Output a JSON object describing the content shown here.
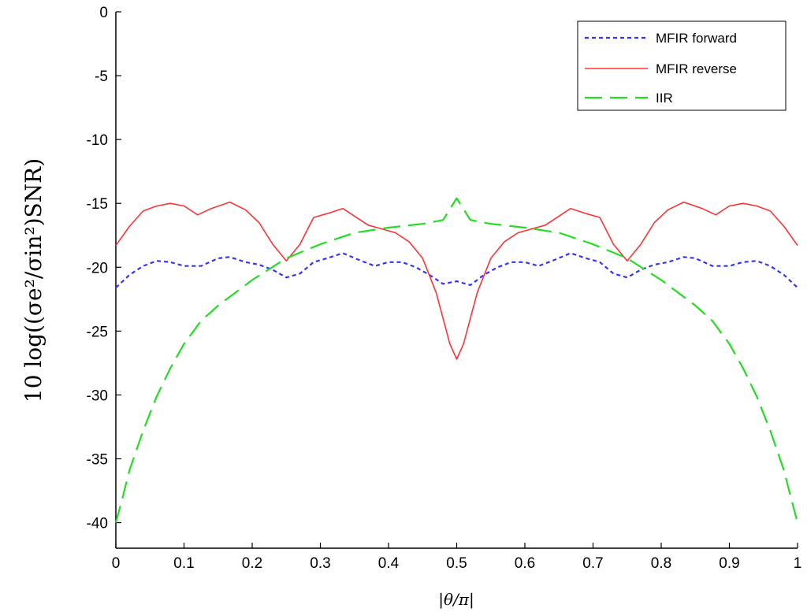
{
  "chart_data": {
    "type": "line",
    "title": "",
    "xlabel": "|θ/π|",
    "ylabel": "10 log((σe²/σin²)SNR)",
    "xlim": [
      0,
      1
    ],
    "ylim": [
      -42,
      0
    ],
    "xticks": [
      0,
      0.1,
      0.2,
      0.3,
      0.4,
      0.5,
      0.6,
      0.7,
      0.8,
      0.9,
      1
    ],
    "xtick_labels": [
      "0",
      "0.1",
      "0.2",
      "0.3",
      "0.4",
      "0.5",
      "0.6",
      "0.7",
      "0.8",
      "0.9",
      "1"
    ],
    "yticks": [
      0,
      -5,
      -10,
      -15,
      -20,
      -25,
      -30,
      -35,
      -40
    ],
    "ytick_labels": [
      "0",
      "-5",
      "-10",
      "-15",
      "-20",
      "-25",
      "-30",
      "-35",
      "-40"
    ],
    "grid": false,
    "legend_position": "top-right",
    "series": [
      {
        "name": "MFIR forward",
        "color": "#3333ff",
        "style": "dotted",
        "x": [
          0,
          0.02,
          0.04,
          0.06,
          0.08,
          0.1,
          0.125,
          0.15,
          0.167,
          0.19,
          0.21,
          0.23,
          0.25,
          0.27,
          0.29,
          0.31,
          0.333,
          0.36,
          0.38,
          0.4,
          0.42,
          0.44,
          0.46,
          0.48,
          0.5,
          0.52,
          0.54,
          0.56,
          0.58,
          0.6,
          0.62,
          0.64,
          0.667,
          0.69,
          0.71,
          0.73,
          0.75,
          0.77,
          0.79,
          0.81,
          0.833,
          0.85,
          0.875,
          0.9,
          0.92,
          0.94,
          0.96,
          0.98,
          1
        ],
        "y": [
          -21.6,
          -20.6,
          -19.9,
          -19.5,
          -19.6,
          -19.9,
          -19.9,
          -19.3,
          -19.2,
          -19.6,
          -19.8,
          -20.2,
          -20.8,
          -20.5,
          -19.6,
          -19.3,
          -18.9,
          -19.5,
          -19.9,
          -19.6,
          -19.6,
          -20.0,
          -20.6,
          -21.3,
          -21.1,
          -21.4,
          -20.6,
          -20.0,
          -19.6,
          -19.6,
          -19.9,
          -19.5,
          -18.9,
          -19.3,
          -19.6,
          -20.5,
          -20.8,
          -20.2,
          -19.8,
          -19.6,
          -19.2,
          -19.3,
          -19.9,
          -19.9,
          -19.6,
          -19.5,
          -19.9,
          -20.6,
          -21.6
        ]
      },
      {
        "name": "MFIR reverse",
        "color": "#ff3333",
        "style": "solid",
        "x": [
          0,
          0.02,
          0.04,
          0.06,
          0.08,
          0.1,
          0.12,
          0.14,
          0.167,
          0.19,
          0.21,
          0.23,
          0.25,
          0.27,
          0.29,
          0.31,
          0.333,
          0.35,
          0.37,
          0.39,
          0.41,
          0.43,
          0.45,
          0.47,
          0.49,
          0.5,
          0.51,
          0.53,
          0.55,
          0.57,
          0.59,
          0.61,
          0.63,
          0.65,
          0.667,
          0.69,
          0.71,
          0.73,
          0.75,
          0.77,
          0.79,
          0.81,
          0.833,
          0.86,
          0.88,
          0.9,
          0.92,
          0.94,
          0.96,
          0.98,
          1
        ],
        "y": [
          -18.3,
          -16.8,
          -15.6,
          -15.2,
          -15.0,
          -15.2,
          -15.9,
          -15.4,
          -14.9,
          -15.5,
          -16.5,
          -18.2,
          -19.5,
          -18.2,
          -16.1,
          -15.8,
          -15.4,
          -16.0,
          -16.7,
          -17.0,
          -17.3,
          -18.0,
          -19.3,
          -22.0,
          -26.0,
          -27.2,
          -26.0,
          -22.0,
          -19.3,
          -18.0,
          -17.3,
          -17.0,
          -16.7,
          -16.0,
          -15.4,
          -15.8,
          -16.1,
          -18.2,
          -19.5,
          -18.2,
          -16.5,
          -15.5,
          -14.9,
          -15.4,
          -15.9,
          -15.2,
          -15.0,
          -15.2,
          -15.6,
          -16.8,
          -18.3
        ]
      },
      {
        "name": "IIR",
        "color": "#22dd22",
        "style": "dashed",
        "x": [
          0,
          0.01,
          0.02,
          0.04,
          0.06,
          0.08,
          0.1,
          0.125,
          0.15,
          0.175,
          0.2,
          0.25,
          0.3,
          0.35,
          0.4,
          0.45,
          0.48,
          0.5,
          0.52,
          0.55,
          0.6,
          0.65,
          0.7,
          0.75,
          0.8,
          0.825,
          0.85,
          0.875,
          0.9,
          0.92,
          0.94,
          0.96,
          0.98,
          0.99,
          1
        ],
        "y": [
          -40.0,
          -38.0,
          -35.9,
          -32.8,
          -30.1,
          -27.9,
          -26.0,
          -24.2,
          -23.0,
          -22.0,
          -21.0,
          -19.3,
          -18.2,
          -17.3,
          -16.9,
          -16.6,
          -16.3,
          -14.6,
          -16.3,
          -16.6,
          -16.9,
          -17.3,
          -18.2,
          -19.3,
          -21.0,
          -22.0,
          -23.0,
          -24.2,
          -26.0,
          -27.9,
          -30.1,
          -32.8,
          -35.9,
          -38.0,
          -40.0
        ]
      }
    ]
  }
}
